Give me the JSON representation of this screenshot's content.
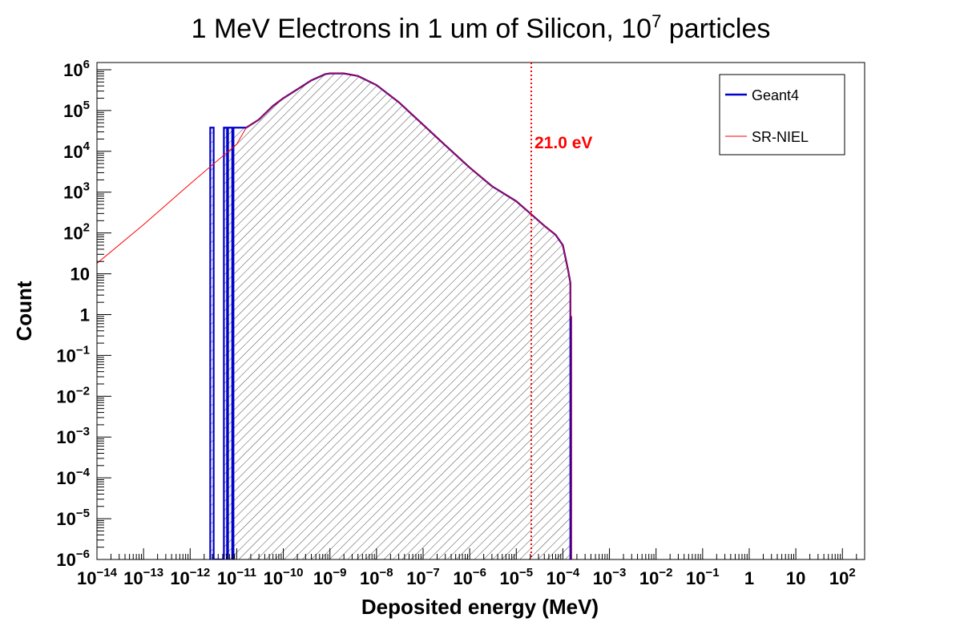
{
  "chart_data": {
    "type": "histogram",
    "title": {
      "base": "1 MeV Electrons in 1 um of Silicon, 10",
      "sup": "7",
      "tail": " particles"
    },
    "xlabel": "Deposited energy (MeV)",
    "ylabel": "Count",
    "x_scale": "log",
    "y_scale": "log",
    "xlim": [
      1e-14,
      300
    ],
    "ylim": [
      1e-06,
      1500000.0
    ],
    "grid": false,
    "legend_position": "top-right",
    "x_ticks": [
      {
        "value": 1e-14,
        "base": "10",
        "sup": "−14"
      },
      {
        "value": 1e-13,
        "base": "10",
        "sup": "−13"
      },
      {
        "value": 1e-12,
        "base": "10",
        "sup": "−12"
      },
      {
        "value": 1e-11,
        "base": "10",
        "sup": "−11"
      },
      {
        "value": 1e-10,
        "base": "10",
        "sup": "−10"
      },
      {
        "value": 1e-09,
        "base": "10",
        "sup": "−9"
      },
      {
        "value": 1e-08,
        "base": "10",
        "sup": "−8"
      },
      {
        "value": 1e-07,
        "base": "10",
        "sup": "−7"
      },
      {
        "value": 1e-06,
        "base": "10",
        "sup": "−6"
      },
      {
        "value": 1e-05,
        "base": "10",
        "sup": "−5"
      },
      {
        "value": 0.0001,
        "base": "10",
        "sup": "−4"
      },
      {
        "value": 0.001,
        "base": "10",
        "sup": "−3"
      },
      {
        "value": 0.01,
        "base": "10",
        "sup": "−2"
      },
      {
        "value": 0.1,
        "base": "10",
        "sup": "−1"
      },
      {
        "value": 1,
        "base": "1",
        "sup": ""
      },
      {
        "value": 10,
        "base": "10",
        "sup": ""
      },
      {
        "value": 100,
        "base": "10",
        "sup": "2"
      }
    ],
    "y_ticks": [
      {
        "value": 1e-06,
        "base": "10",
        "sup": "−6"
      },
      {
        "value": 1e-05,
        "base": "10",
        "sup": "−5"
      },
      {
        "value": 0.0001,
        "base": "10",
        "sup": "−4"
      },
      {
        "value": 0.001,
        "base": "10",
        "sup": "−3"
      },
      {
        "value": 0.01,
        "base": "10",
        "sup": "−2"
      },
      {
        "value": 0.1,
        "base": "10",
        "sup": "−1"
      },
      {
        "value": 1,
        "base": "1",
        "sup": ""
      },
      {
        "value": 10,
        "base": "10",
        "sup": ""
      },
      {
        "value": 100,
        "base": "10",
        "sup": "2"
      },
      {
        "value": 1000,
        "base": "10",
        "sup": "3"
      },
      {
        "value": 10000,
        "base": "10",
        "sup": "4"
      },
      {
        "value": 100000,
        "base": "10",
        "sup": "5"
      },
      {
        "value": 1000000,
        "base": "10",
        "sup": "6"
      }
    ],
    "series": [
      {
        "name": "Geant4",
        "color": "#0000cc",
        "style": "step-filled-hatched",
        "points": [
          [
            2.7e-12,
            1e-06
          ],
          [
            2.7e-12,
            38000
          ],
          [
            3.2e-12,
            38000
          ],
          [
            3.2e-12,
            1e-06
          ],
          [
            5.3e-12,
            1e-06
          ],
          [
            5.3e-12,
            38000
          ],
          [
            6.2e-12,
            38000
          ],
          [
            6.2e-12,
            1e-06
          ],
          [
            6.5e-12,
            1e-06
          ],
          [
            6.5e-12,
            38000
          ],
          [
            8e-12,
            38000
          ],
          [
            8e-12,
            1e-06
          ],
          [
            8.5e-12,
            1e-06
          ],
          [
            8.5e-12,
            38000
          ],
          [
            1.6e-11,
            38000
          ],
          [
            3e-11,
            60000
          ],
          [
            6e-11,
            130000
          ],
          [
            1e-10,
            200000
          ],
          [
            2e-10,
            330000
          ],
          [
            4e-10,
            550000
          ],
          [
            8e-10,
            780000
          ],
          [
            1e-09,
            810000
          ],
          [
            2e-09,
            810000
          ],
          [
            4e-09,
            700000
          ],
          [
            1e-08,
            420000
          ],
          [
            3e-08,
            160000
          ],
          [
            1e-07,
            45000
          ],
          [
            3e-07,
            14000
          ],
          [
            1e-06,
            4000
          ],
          [
            3e-06,
            1400
          ],
          [
            1e-05,
            600
          ],
          [
            2e-05,
            300
          ],
          [
            4e-05,
            150
          ],
          [
            7e-05,
            90
          ],
          [
            0.0001,
            50
          ],
          [
            0.00013,
            12
          ],
          [
            0.000145,
            6
          ],
          [
            0.000145,
            1e-06
          ]
        ]
      },
      {
        "name": "SR-NIEL",
        "color": "#ff0000",
        "style": "step-line",
        "points": [
          [
            1e-14,
            1e-06
          ],
          [
            1e-14,
            18
          ],
          [
            1e-13,
            160
          ],
          [
            1e-12,
            1600
          ],
          [
            1e-11,
            15000
          ],
          [
            1.6e-11,
            38000
          ],
          [
            3e-11,
            60000
          ],
          [
            6e-11,
            130000
          ],
          [
            1e-10,
            200000
          ],
          [
            2e-10,
            330000
          ],
          [
            4e-10,
            550000
          ],
          [
            8e-10,
            780000
          ],
          [
            1e-09,
            810000
          ],
          [
            2e-09,
            810000
          ],
          [
            4e-09,
            700000
          ],
          [
            1e-08,
            420000
          ],
          [
            3e-08,
            160000
          ],
          [
            1e-07,
            45000
          ],
          [
            3e-07,
            14000
          ],
          [
            1e-06,
            4000
          ],
          [
            3e-06,
            1400
          ],
          [
            1e-05,
            600
          ],
          [
            2e-05,
            300
          ],
          [
            4e-05,
            150
          ],
          [
            7e-05,
            90
          ],
          [
            0.0001,
            50
          ],
          [
            0.00013,
            12
          ],
          [
            0.000145,
            6
          ],
          [
            0.000145,
            0.9
          ],
          [
            0.000155,
            0.9
          ],
          [
            0.000155,
            1e-06
          ],
          [
            300,
            1e-06
          ]
        ]
      }
    ],
    "annotations": [
      {
        "type": "vertical-dotted-line",
        "x": 2.1e-05,
        "color": "#ff0000",
        "label": "21.0 eV"
      }
    ],
    "legend": [
      {
        "label": "Geant4",
        "color": "#0000cc",
        "line_width": "thick"
      },
      {
        "label": "SR-NIEL",
        "color": "#ff0000",
        "line_width": "thin"
      }
    ]
  }
}
